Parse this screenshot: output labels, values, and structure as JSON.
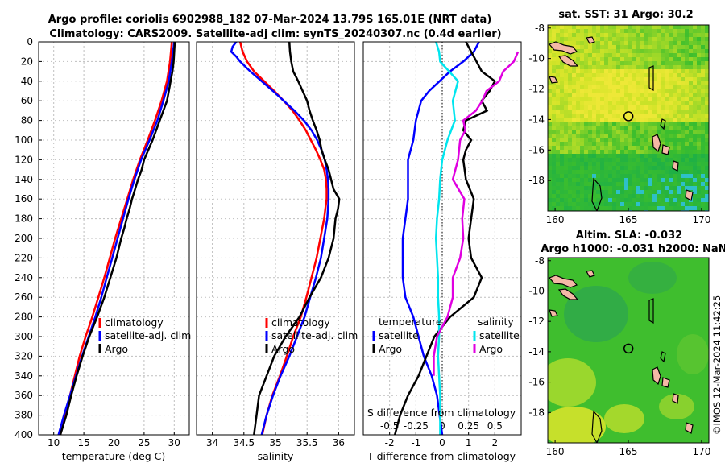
{
  "figure": {
    "title_line1": "Argo profile: coriolis 6902988_182 07-Mar-2024 13.79S 165.01E (NRT data)",
    "title_line2": "Climatology: CARS2009. Satellite-adj clim: synTS_20240307.nc (0.4d earlier)",
    "credit": "©IMOS 12-Mar-2024 11:42:25"
  },
  "colors": {
    "argo": "#000000",
    "climatology": "#ff0000",
    "satellite_adj": "#0000ff",
    "salinity_satellite": "#00e5ee",
    "salinity_argo": "#e000e0",
    "grid": "#bfbfbf"
  },
  "chart_data": [
    {
      "type": "line",
      "panel": "temperature",
      "xlabel": "temperature (deg C)",
      "ylabel": "depth",
      "xlim": [
        7.5,
        32.5
      ],
      "ylim": [
        400,
        0
      ],
      "xticks": [
        10,
        15,
        20,
        25,
        30
      ],
      "yticks": [
        0,
        20,
        40,
        60,
        80,
        100,
        120,
        140,
        160,
        180,
        200,
        220,
        240,
        260,
        280,
        300,
        320,
        340,
        360,
        380,
        400
      ],
      "grid": true,
      "legend": [
        "climatology",
        "satellite-adj. clim",
        "Argo"
      ],
      "series": [
        {
          "name": "climatology",
          "color": "#ff0000",
          "depth": [
            0,
            20,
            40,
            60,
            80,
            100,
            120,
            140,
            160,
            180,
            200,
            220,
            240,
            260,
            280,
            300,
            320,
            340,
            360,
            380,
            400
          ],
          "values": [
            29.6,
            29.3,
            28.8,
            27.9,
            26.8,
            25.6,
            24.3,
            23.2,
            22.2,
            21.2,
            20.2,
            19.3,
            18.4,
            17.4,
            16.4,
            15.3,
            14.3,
            13.5,
            12.7,
            11.9,
            11.1
          ]
        },
        {
          "name": "satellite-adj. clim",
          "color": "#0000ff",
          "depth": [
            0,
            20,
            40,
            60,
            80,
            100,
            120,
            140,
            160,
            180,
            200,
            220,
            240,
            260,
            280,
            300,
            320,
            340,
            360,
            380,
            400
          ],
          "values": [
            30.0,
            29.6,
            29.1,
            28.2,
            27.2,
            25.9,
            24.5,
            23.4,
            22.4,
            21.5,
            20.6,
            19.7,
            18.8,
            17.9,
            16.9,
            15.8,
            14.7,
            13.7,
            12.7,
            11.7,
            10.8
          ]
        },
        {
          "name": "Argo",
          "color": "#000000",
          "depth": [
            0,
            10,
            20,
            30,
            40,
            50,
            60,
            70,
            80,
            90,
            100,
            110,
            120,
            130,
            140,
            150,
            160,
            170,
            180,
            190,
            200,
            220,
            240,
            260,
            280,
            300,
            320,
            340,
            360,
            380,
            400
          ],
          "values": [
            30.1,
            30.0,
            29.9,
            29.7,
            29.4,
            29.1,
            28.8,
            28.2,
            27.6,
            27.0,
            26.4,
            25.7,
            25.0,
            24.6,
            24.0,
            23.5,
            23.0,
            22.6,
            22.1,
            21.7,
            21.2,
            20.4,
            19.4,
            18.4,
            17.2,
            15.9,
            14.8,
            13.8,
            12.9,
            12.1,
            11.1
          ]
        }
      ]
    },
    {
      "type": "line",
      "panel": "salinity",
      "xlabel": "salinity",
      "xlim": [
        33.75,
        36.25
      ],
      "ylim": [
        400,
        0
      ],
      "xticks": [
        34,
        34.5,
        35,
        35.5,
        36
      ],
      "grid": true,
      "legend": [
        "climatology",
        "satellite-adj. clim",
        "Argo"
      ],
      "series": [
        {
          "name": "climatology",
          "color": "#ff0000",
          "depth": [
            0,
            10,
            20,
            30,
            40,
            50,
            60,
            70,
            80,
            90,
            100,
            110,
            120,
            130,
            140,
            150,
            160,
            170,
            180,
            200,
            220,
            240,
            260,
            280,
            300,
            320,
            340,
            360,
            380,
            400
          ],
          "values": [
            34.44,
            34.48,
            34.55,
            34.66,
            34.82,
            34.98,
            35.13,
            35.27,
            35.38,
            35.48,
            35.56,
            35.64,
            35.71,
            35.77,
            35.8,
            35.81,
            35.81,
            35.79,
            35.77,
            35.71,
            35.65,
            35.57,
            35.49,
            35.4,
            35.28,
            35.18,
            35.07,
            34.95,
            34.86,
            34.79
          ]
        },
        {
          "name": "satellite-adj. clim",
          "color": "#0000ff",
          "depth": [
            0,
            5,
            10,
            15,
            20,
            30,
            40,
            50,
            60,
            70,
            80,
            90,
            100,
            110,
            120,
            130,
            140,
            150,
            160,
            170,
            180,
            200,
            220,
            240,
            260,
            280,
            300,
            320,
            340,
            360,
            380,
            400
          ],
          "values": [
            34.38,
            34.32,
            34.3,
            34.38,
            34.44,
            34.6,
            34.78,
            34.96,
            35.13,
            35.3,
            35.45,
            35.57,
            35.66,
            35.73,
            35.78,
            35.81,
            35.83,
            35.84,
            35.84,
            35.83,
            35.82,
            35.77,
            35.72,
            35.64,
            35.55,
            35.46,
            35.34,
            35.22,
            35.08,
            34.96,
            34.86,
            34.78
          ]
        },
        {
          "name": "Argo",
          "color": "#000000",
          "depth": [
            0,
            10,
            20,
            30,
            40,
            50,
            60,
            70,
            80,
            90,
            100,
            110,
            120,
            130,
            140,
            150,
            160,
            170,
            180,
            200,
            220,
            240,
            260,
            280,
            300,
            320,
            340,
            360,
            380,
            400
          ],
          "values": [
            35.22,
            35.23,
            35.25,
            35.28,
            35.36,
            35.43,
            35.5,
            35.54,
            35.59,
            35.65,
            35.7,
            35.73,
            35.78,
            35.84,
            35.88,
            35.92,
            36.01,
            35.99,
            35.95,
            35.92,
            35.84,
            35.72,
            35.54,
            35.38,
            35.16,
            34.98,
            34.86,
            34.74,
            34.7,
            34.66
          ]
        }
      ]
    },
    {
      "type": "line",
      "panel": "differences",
      "xlabel_T": "T difference from climatology",
      "xlabel_S": "S difference from climatology",
      "xlim_T": [
        -3,
        3
      ],
      "xticks_T": [
        -2,
        -1,
        0,
        1,
        2
      ],
      "xticks_S": [
        -0.5,
        -0.25,
        0,
        0.25,
        0.5
      ],
      "xtick_labels_S": [
        "-0.5",
        "-0.25",
        "0",
        "0.25",
        "0.5"
      ],
      "xlim_S": [
        -0.75,
        0.75
      ],
      "ylim": [
        400,
        0
      ],
      "grid": true,
      "legend_groups": [
        {
          "title": "temperature",
          "items": [
            "satellite",
            "Argo"
          ]
        },
        {
          "title": "salinity",
          "items": [
            "satellite",
            "Argo"
          ]
        }
      ],
      "series": [
        {
          "name": "temperature satellite",
          "axis": "T",
          "color": "#0000ff",
          "depth": [
            0,
            10,
            20,
            30,
            40,
            50,
            60,
            80,
            100,
            120,
            140,
            160,
            180,
            200,
            220,
            240,
            260,
            280,
            300,
            320,
            340,
            360,
            380,
            400
          ],
          "values": [
            1.4,
            1.2,
            0.8,
            0.3,
            -0.1,
            -0.5,
            -0.8,
            -1.0,
            -1.1,
            -1.3,
            -1.3,
            -1.3,
            -1.4,
            -1.5,
            -1.5,
            -1.5,
            -1.4,
            -1.1,
            -0.9,
            -0.7,
            -0.4,
            -0.2,
            -0.1,
            0.0
          ]
        },
        {
          "name": "temperature Argo",
          "axis": "T",
          "color": "#000000",
          "depth": [
            0,
            10,
            20,
            30,
            40,
            50,
            60,
            70,
            80,
            90,
            100,
            110,
            120,
            140,
            160,
            180,
            200,
            220,
            240,
            260,
            280,
            300,
            320,
            340,
            360,
            380,
            400
          ],
          "values": [
            0.9,
            1.1,
            1.3,
            1.5,
            2.0,
            1.8,
            1.5,
            1.7,
            0.9,
            0.8,
            1.1,
            0.9,
            0.8,
            0.9,
            1.2,
            1.1,
            1.0,
            1.1,
            1.5,
            1.2,
            0.3,
            -0.3,
            -0.6,
            -0.9,
            -1.3,
            -1.6,
            -1.8
          ]
        },
        {
          "name": "salinity satellite",
          "axis": "S",
          "color": "#00e5ee",
          "depth": [
            0,
            10,
            20,
            40,
            60,
            80,
            100,
            120,
            140,
            160,
            180,
            200,
            220,
            240,
            260,
            280,
            300,
            320,
            340,
            360,
            380,
            400
          ],
          "values": [
            -0.06,
            -0.03,
            -0.02,
            0.15,
            0.1,
            0.12,
            0.05,
            0.0,
            -0.02,
            -0.03,
            -0.05,
            -0.06,
            -0.05,
            -0.04,
            -0.04,
            -0.03,
            -0.03,
            -0.04,
            -0.03,
            -0.02,
            -0.02,
            -0.02
          ]
        },
        {
          "name": "salinity Argo",
          "axis": "S",
          "color": "#e000e0",
          "depth": [
            10,
            20,
            30,
            40,
            50,
            60,
            70,
            80,
            90,
            100,
            120,
            140,
            160,
            180,
            200,
            220,
            240,
            260,
            280,
            300,
            320,
            340
          ],
          "values": [
            0.72,
            0.68,
            0.58,
            0.54,
            0.42,
            0.38,
            0.32,
            0.2,
            0.22,
            0.17,
            0.15,
            0.1,
            0.21,
            0.19,
            0.2,
            0.17,
            0.1,
            0.1,
            0.05,
            -0.05,
            -0.08,
            -0.08
          ]
        }
      ]
    },
    {
      "type": "heatmap",
      "panel": "sst_map",
      "title": "sat. SST: 31  Argo: 30.2",
      "xlim": [
        159.5,
        170.5
      ],
      "ylim": [
        -20,
        -7.8
      ],
      "xticks": [
        160,
        165,
        170
      ],
      "yticks": [
        -8,
        -10,
        -12,
        -14,
        -16,
        -18
      ],
      "float_position": {
        "lon": 165.01,
        "lat": -13.79
      }
    },
    {
      "type": "heatmap",
      "panel": "sla_map",
      "title_line1": "Altim. SLA: -0.032",
      "title_line2": "Argo h1000: -0.031  h2000: NaN",
      "xlim": [
        159.5,
        170.5
      ],
      "ylim": [
        -20,
        -7.8
      ],
      "xticks": [
        160,
        165,
        170
      ],
      "yticks": [
        -8,
        -10,
        -12,
        -14,
        -16,
        -18
      ],
      "float_position": {
        "lon": 165.01,
        "lat": -13.79
      }
    }
  ]
}
